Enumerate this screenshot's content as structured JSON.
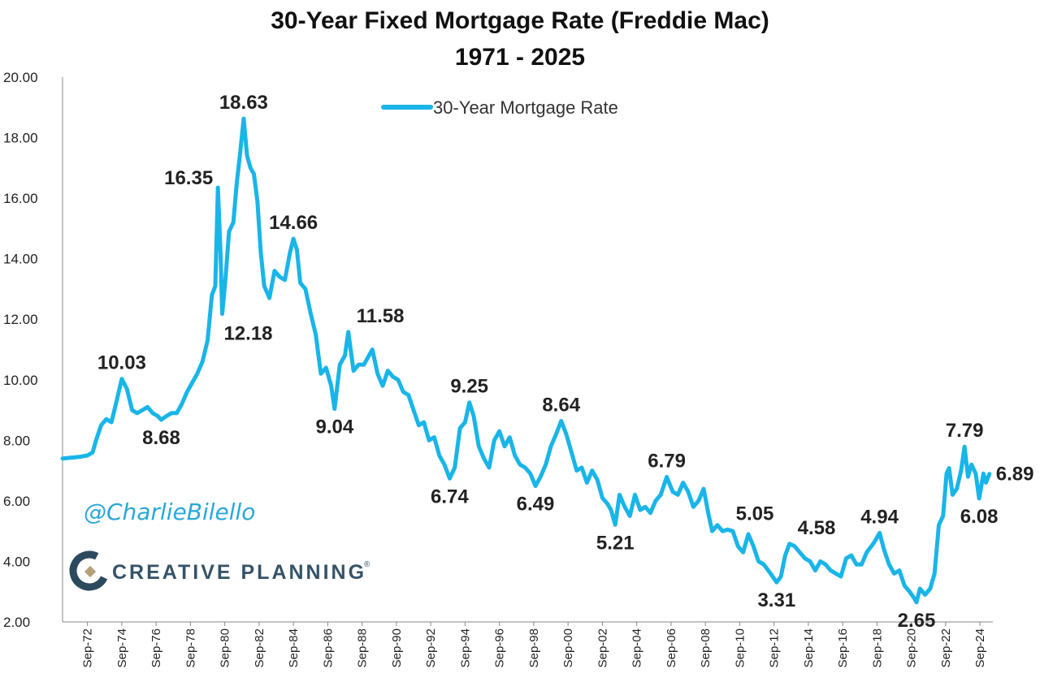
{
  "chart_data": {
    "type": "line",
    "title": "30-Year Fixed Mortgage Rate (Freddie Mac)",
    "subtitle": "1971 - 2025",
    "xlabel": "",
    "ylabel": "",
    "ylim": [
      2,
      20
    ],
    "yticks": [
      "2.00",
      "4.00",
      "6.00",
      "8.00",
      "10.00",
      "12.00",
      "14.00",
      "16.00",
      "18.00",
      "20.00"
    ],
    "xticks": [
      "Sep-72",
      "Sep-74",
      "Sep-76",
      "Sep-78",
      "Sep-80",
      "Sep-82",
      "Sep-84",
      "Sep-86",
      "Sep-88",
      "Sep-90",
      "Sep-92",
      "Sep-94",
      "Sep-96",
      "Sep-98",
      "Sep-00",
      "Sep-02",
      "Sep-04",
      "Sep-06",
      "Sep-08",
      "Sep-10",
      "Sep-12",
      "Sep-14",
      "Sep-16",
      "Sep-18",
      "Sep-20",
      "Sep-22",
      "Sep-24"
    ],
    "legend": {
      "position": "top-center",
      "entries": [
        "30-Year Mortgage Rate"
      ]
    },
    "grid": false,
    "series": [
      {
        "name": "30-Year Mortgage Rate",
        "color": "#19b5e8",
        "points": [
          [
            1971.25,
            7.4
          ],
          [
            1972.2,
            7.45
          ],
          [
            1972.7,
            7.5
          ],
          [
            1973.0,
            7.6
          ],
          [
            1973.2,
            8.0
          ],
          [
            1973.5,
            8.5
          ],
          [
            1973.8,
            8.7
          ],
          [
            1974.1,
            8.6
          ],
          [
            1974.4,
            9.3
          ],
          [
            1974.7,
            10.03
          ],
          [
            1975.0,
            9.7
          ],
          [
            1975.3,
            9.0
          ],
          [
            1975.6,
            8.9
          ],
          [
            1975.9,
            9.0
          ],
          [
            1976.2,
            9.1
          ],
          [
            1976.5,
            8.9
          ],
          [
            1976.8,
            8.8
          ],
          [
            1977.0,
            8.68
          ],
          [
            1977.3,
            8.8
          ],
          [
            1977.6,
            8.9
          ],
          [
            1977.9,
            8.9
          ],
          [
            1978.2,
            9.2
          ],
          [
            1978.5,
            9.6
          ],
          [
            1978.8,
            9.9
          ],
          [
            1979.1,
            10.2
          ],
          [
            1979.4,
            10.6
          ],
          [
            1979.7,
            11.3
          ],
          [
            1979.95,
            12.8
          ],
          [
            1980.15,
            13.1
          ],
          [
            1980.3,
            16.35
          ],
          [
            1980.45,
            14.2
          ],
          [
            1980.55,
            12.18
          ],
          [
            1980.75,
            13.4
          ],
          [
            1980.95,
            14.9
          ],
          [
            1981.2,
            15.2
          ],
          [
            1981.4,
            16.5
          ],
          [
            1981.6,
            17.5
          ],
          [
            1981.8,
            18.63
          ],
          [
            1982.0,
            17.4
          ],
          [
            1982.2,
            17.0
          ],
          [
            1982.4,
            16.8
          ],
          [
            1982.6,
            15.9
          ],
          [
            1982.8,
            14.2
          ],
          [
            1983.0,
            13.1
          ],
          [
            1983.3,
            12.7
          ],
          [
            1983.6,
            13.6
          ],
          [
            1983.9,
            13.4
          ],
          [
            1984.2,
            13.3
          ],
          [
            1984.5,
            14.2
          ],
          [
            1984.7,
            14.66
          ],
          [
            1984.9,
            14.3
          ],
          [
            1985.1,
            13.2
          ],
          [
            1985.4,
            13.0
          ],
          [
            1985.7,
            12.2
          ],
          [
            1986.0,
            11.5
          ],
          [
            1986.3,
            10.2
          ],
          [
            1986.6,
            10.4
          ],
          [
            1986.9,
            9.8
          ],
          [
            1987.1,
            9.04
          ],
          [
            1987.4,
            10.5
          ],
          [
            1987.7,
            10.8
          ],
          [
            1987.9,
            11.58
          ],
          [
            1988.2,
            10.3
          ],
          [
            1988.5,
            10.5
          ],
          [
            1988.8,
            10.5
          ],
          [
            1989.1,
            10.8
          ],
          [
            1989.3,
            11.0
          ],
          [
            1989.6,
            10.2
          ],
          [
            1989.9,
            9.8
          ],
          [
            1990.2,
            10.3
          ],
          [
            1990.5,
            10.1
          ],
          [
            1990.8,
            10.0
          ],
          [
            1991.1,
            9.6
          ],
          [
            1991.4,
            9.5
          ],
          [
            1991.7,
            9.0
          ],
          [
            1992.0,
            8.5
          ],
          [
            1992.3,
            8.6
          ],
          [
            1992.6,
            8.0
          ],
          [
            1992.9,
            8.1
          ],
          [
            1993.2,
            7.5
          ],
          [
            1993.5,
            7.2
          ],
          [
            1993.8,
            6.74
          ],
          [
            1994.1,
            7.1
          ],
          [
            1994.4,
            8.4
          ],
          [
            1994.7,
            8.6
          ],
          [
            1994.95,
            9.25
          ],
          [
            1995.2,
            8.8
          ],
          [
            1995.5,
            7.8
          ],
          [
            1995.8,
            7.4
          ],
          [
            1996.1,
            7.1
          ],
          [
            1996.4,
            8.0
          ],
          [
            1996.7,
            8.3
          ],
          [
            1997.0,
            7.8
          ],
          [
            1997.3,
            8.1
          ],
          [
            1997.6,
            7.5
          ],
          [
            1997.9,
            7.2
          ],
          [
            1998.2,
            7.1
          ],
          [
            1998.5,
            6.9
          ],
          [
            1998.8,
            6.49
          ],
          [
            1999.1,
            6.8
          ],
          [
            1999.4,
            7.2
          ],
          [
            1999.7,
            7.8
          ],
          [
            2000.0,
            8.2
          ],
          [
            2000.3,
            8.64
          ],
          [
            2000.6,
            8.2
          ],
          [
            2000.9,
            7.6
          ],
          [
            2001.2,
            7.0
          ],
          [
            2001.5,
            7.1
          ],
          [
            2001.8,
            6.6
          ],
          [
            2002.1,
            7.0
          ],
          [
            2002.4,
            6.7
          ],
          [
            2002.7,
            6.1
          ],
          [
            2003.0,
            5.9
          ],
          [
            2003.2,
            5.7
          ],
          [
            2003.45,
            5.21
          ],
          [
            2003.7,
            6.2
          ],
          [
            2004.0,
            5.8
          ],
          [
            2004.3,
            5.5
          ],
          [
            2004.6,
            6.2
          ],
          [
            2004.9,
            5.7
          ],
          [
            2005.2,
            5.8
          ],
          [
            2005.5,
            5.6
          ],
          [
            2005.8,
            6.0
          ],
          [
            2006.1,
            6.2
          ],
          [
            2006.45,
            6.79
          ],
          [
            2006.8,
            6.3
          ],
          [
            2007.1,
            6.2
          ],
          [
            2007.4,
            6.6
          ],
          [
            2007.7,
            6.3
          ],
          [
            2008.0,
            5.8
          ],
          [
            2008.3,
            6.0
          ],
          [
            2008.6,
            6.4
          ],
          [
            2008.9,
            5.5
          ],
          [
            2009.1,
            5.0
          ],
          [
            2009.4,
            5.2
          ],
          [
            2009.7,
            5.0
          ],
          [
            2010.0,
            5.05
          ],
          [
            2010.3,
            5.0
          ],
          [
            2010.6,
            4.5
          ],
          [
            2010.9,
            4.3
          ],
          [
            2011.2,
            4.9
          ],
          [
            2011.5,
            4.5
          ],
          [
            2011.8,
            4.0
          ],
          [
            2012.1,
            3.9
          ],
          [
            2012.5,
            3.6
          ],
          [
            2012.85,
            3.31
          ],
          [
            2013.1,
            3.5
          ],
          [
            2013.35,
            4.2
          ],
          [
            2013.6,
            4.58
          ],
          [
            2013.9,
            4.5
          ],
          [
            2014.2,
            4.3
          ],
          [
            2014.5,
            4.1
          ],
          [
            2014.8,
            4.0
          ],
          [
            2015.1,
            3.7
          ],
          [
            2015.4,
            4.0
          ],
          [
            2015.7,
            3.9
          ],
          [
            2016.0,
            3.7
          ],
          [
            2016.3,
            3.6
          ],
          [
            2016.6,
            3.5
          ],
          [
            2016.9,
            4.1
          ],
          [
            2017.2,
            4.2
          ],
          [
            2017.5,
            3.9
          ],
          [
            2017.8,
            3.9
          ],
          [
            2018.1,
            4.3
          ],
          [
            2018.5,
            4.6
          ],
          [
            2018.85,
            4.94
          ],
          [
            2019.1,
            4.4
          ],
          [
            2019.4,
            3.9
          ],
          [
            2019.7,
            3.6
          ],
          [
            2020.0,
            3.7
          ],
          [
            2020.3,
            3.2
          ],
          [
            2020.6,
            3.0
          ],
          [
            2020.85,
            2.8
          ],
          [
            2021.0,
            2.65
          ],
          [
            2021.2,
            3.1
          ],
          [
            2021.5,
            2.9
          ],
          [
            2021.8,
            3.1
          ],
          [
            2022.05,
            3.6
          ],
          [
            2022.3,
            5.2
          ],
          [
            2022.55,
            5.5
          ],
          [
            2022.75,
            6.9
          ],
          [
            2022.9,
            7.08
          ],
          [
            2023.1,
            6.2
          ],
          [
            2023.35,
            6.4
          ],
          [
            2023.6,
            7.0
          ],
          [
            2023.8,
            7.79
          ],
          [
            2024.0,
            6.8
          ],
          [
            2024.2,
            7.2
          ],
          [
            2024.45,
            6.9
          ],
          [
            2024.65,
            6.08
          ],
          [
            2024.9,
            6.9
          ],
          [
            2025.05,
            6.6
          ],
          [
            2025.25,
            6.89
          ]
        ]
      }
    ],
    "annotations": [
      {
        "x": 1974.7,
        "y": 10.03,
        "text": "10.03",
        "pos": "above"
      },
      {
        "x": 1977.0,
        "y": 8.68,
        "text": "8.68",
        "pos": "below"
      },
      {
        "x": 1980.3,
        "y": 16.35,
        "text": "16.35",
        "pos": "left"
      },
      {
        "x": 1980.55,
        "y": 12.18,
        "text": "12.18",
        "pos": "below-right"
      },
      {
        "x": 1981.8,
        "y": 18.63,
        "text": "18.63",
        "pos": "above"
      },
      {
        "x": 1984.7,
        "y": 14.66,
        "text": "14.66",
        "pos": "above"
      },
      {
        "x": 1987.1,
        "y": 9.04,
        "text": "9.04",
        "pos": "below"
      },
      {
        "x": 1987.9,
        "y": 11.58,
        "text": "11.58",
        "pos": "above-right"
      },
      {
        "x": 1993.8,
        "y": 6.74,
        "text": "6.74",
        "pos": "below"
      },
      {
        "x": 1994.95,
        "y": 9.25,
        "text": "9.25",
        "pos": "above"
      },
      {
        "x": 1998.8,
        "y": 6.49,
        "text": "6.49",
        "pos": "below"
      },
      {
        "x": 2000.3,
        "y": 8.64,
        "text": "8.64",
        "pos": "above"
      },
      {
        "x": 2003.45,
        "y": 5.21,
        "text": "5.21",
        "pos": "below"
      },
      {
        "x": 2006.45,
        "y": 6.79,
        "text": "6.79",
        "pos": "above"
      },
      {
        "x": 2010.0,
        "y": 5.05,
        "text": "5.05",
        "pos": "above-right"
      },
      {
        "x": 2012.85,
        "y": 3.31,
        "text": "3.31",
        "pos": "below"
      },
      {
        "x": 2013.6,
        "y": 4.58,
        "text": "4.58",
        "pos": "above-right"
      },
      {
        "x": 2018.85,
        "y": 4.94,
        "text": "4.94",
        "pos": "above"
      },
      {
        "x": 2021.0,
        "y": 2.65,
        "text": "2.65",
        "pos": "below"
      },
      {
        "x": 2023.8,
        "y": 7.79,
        "text": "7.79",
        "pos": "above"
      },
      {
        "x": 2024.65,
        "y": 6.08,
        "text": "6.08",
        "pos": "below"
      },
      {
        "x": 2025.25,
        "y": 6.89,
        "text": "6.89",
        "pos": "right"
      }
    ]
  },
  "watermark": {
    "handle": "@CharlieBilello",
    "brand": "CREATIVE PLANNING",
    "brand_mark": "®"
  },
  "colors": {
    "line": "#19b5e8",
    "handle": "#2aa7d8",
    "brand_text": "#355368",
    "logo_dark": "#2c4a5e",
    "logo_accent": "#b6a07a"
  },
  "icons": [
    "creative-planning-logo-icon"
  ]
}
